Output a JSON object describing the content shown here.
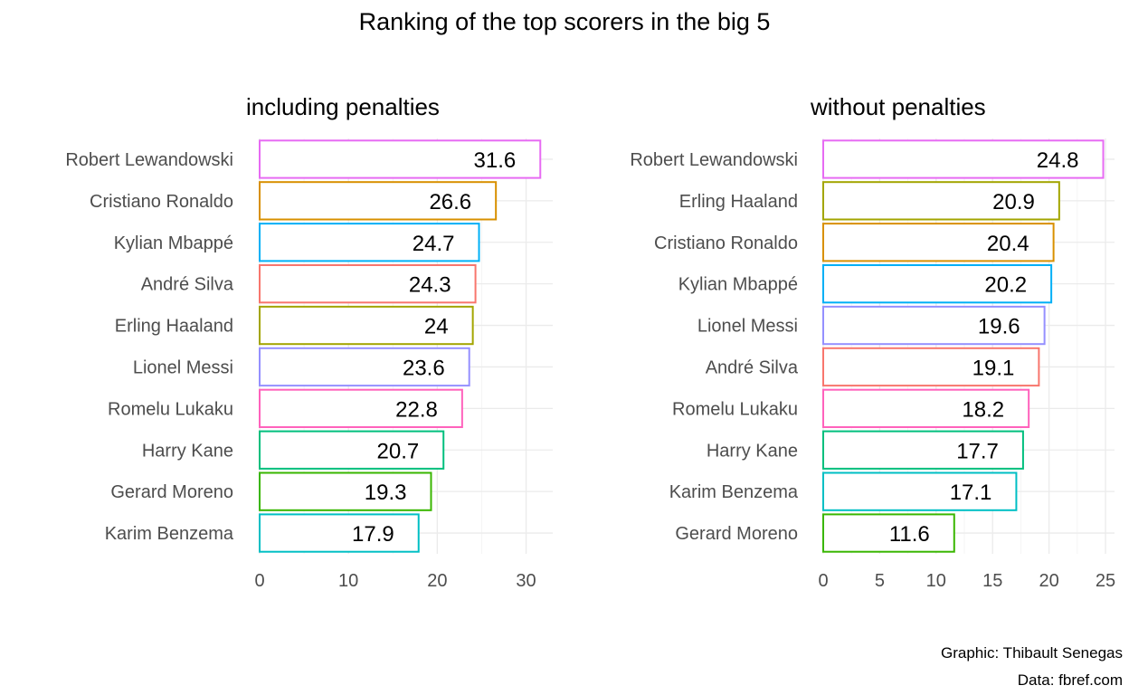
{
  "figure_title": "Ranking of the top scorers in the big 5",
  "caption": {
    "line1": "Graphic: Thibault Senegas",
    "line2": "Data: fbref.com"
  },
  "chart_data": [
    {
      "type": "bar",
      "orientation": "horizontal",
      "title": "including penalties",
      "xlim": [
        0,
        33
      ],
      "ticks": [
        0,
        10,
        20,
        30
      ],
      "grid": true,
      "categories": [
        "Robert Lewandowski",
        "Cristiano Ronaldo",
        "Kylian Mbappé",
        "André Silva",
        "Erling Haaland",
        "Lionel Messi",
        "Romelu Lukaku",
        "Harry Kane",
        "Gerard Moreno",
        "Karim Benzema"
      ],
      "values": [
        31.6,
        26.6,
        24.7,
        24.3,
        24,
        23.6,
        22.8,
        20.7,
        19.3,
        17.9
      ],
      "labels": [
        "31.6",
        "26.6",
        "24.7",
        "24.3",
        "24",
        "23.6",
        "22.8",
        "20.7",
        "19.3",
        "17.9"
      ],
      "colors": [
        "#E76BF3",
        "#D89000",
        "#00B0F6",
        "#F8766D",
        "#A3A500",
        "#9590FF",
        "#FF62BC",
        "#00BF7D",
        "#39B600",
        "#00BFC4"
      ]
    },
    {
      "type": "bar",
      "orientation": "horizontal",
      "title": "without penalties",
      "xlim": [
        0,
        25.8
      ],
      "ticks": [
        0,
        5,
        10,
        15,
        20,
        25
      ],
      "grid": true,
      "categories": [
        "Robert Lewandowski",
        "Erling Haaland",
        "Cristiano Ronaldo",
        "Kylian Mbappé",
        "Lionel Messi",
        "André Silva",
        "Romelu Lukaku",
        "Harry Kane",
        "Karim Benzema",
        "Gerard Moreno"
      ],
      "values": [
        24.8,
        20.9,
        20.4,
        20.2,
        19.6,
        19.1,
        18.2,
        17.7,
        17.1,
        11.6
      ],
      "labels": [
        "24.8",
        "20.9",
        "20.4",
        "20.2",
        "19.6",
        "19.1",
        "18.2",
        "17.7",
        "17.1",
        "11.6"
      ],
      "colors": [
        "#E76BF3",
        "#A3A500",
        "#D89000",
        "#00B0F6",
        "#9590FF",
        "#F8766D",
        "#FF62BC",
        "#00BF7D",
        "#00BFC4",
        "#39B600"
      ]
    }
  ]
}
